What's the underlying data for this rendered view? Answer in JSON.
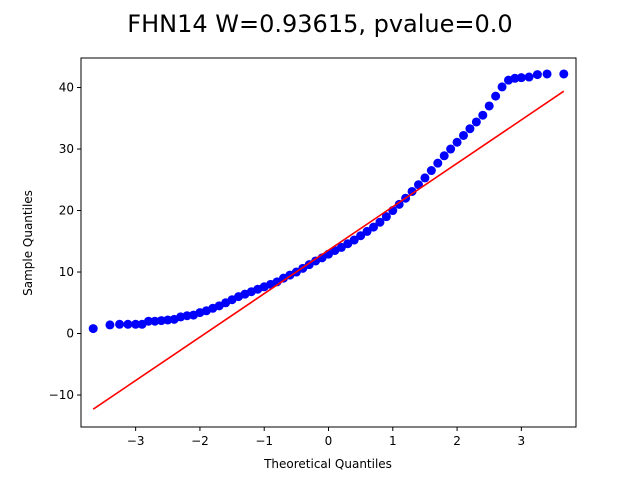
{
  "chart_data": {
    "type": "scatter",
    "title": "FHN14 W=0.93615, pvalue=0.0",
    "xlabel": "Theoretical Quantiles",
    "ylabel": "Sample Quantiles",
    "xlim": [
      -3.85,
      3.85
    ],
    "ylim": [
      -15.2,
      44.8
    ],
    "xticks": [
      -3,
      -2,
      -1,
      0,
      1,
      2,
      3
    ],
    "xtick_labels": [
      "−3",
      "−2",
      "−1",
      "0",
      "1",
      "2",
      "3"
    ],
    "yticks": [
      -10,
      0,
      10,
      20,
      30,
      40
    ],
    "ytick_labels": [
      "−10",
      "0",
      "10",
      "20",
      "30",
      "40"
    ],
    "grid": false,
    "series": [
      {
        "role": "points",
        "color": "#0000ff",
        "marker": "circle",
        "x": [
          -3.66,
          -3.4,
          -3.25,
          -3.12,
          -3.0,
          -2.9,
          -2.8,
          -2.7,
          -2.6,
          -2.5,
          -2.4,
          -2.3,
          -2.2,
          -2.1,
          -2.0,
          -1.9,
          -1.8,
          -1.7,
          -1.6,
          -1.5,
          -1.4,
          -1.3,
          -1.2,
          -1.1,
          -1.0,
          -0.9,
          -0.8,
          -0.7,
          -0.6,
          -0.5,
          -0.4,
          -0.3,
          -0.2,
          -0.1,
          0.0,
          0.1,
          0.2,
          0.3,
          0.4,
          0.5,
          0.6,
          0.7,
          0.8,
          0.9,
          1.0,
          1.1,
          1.2,
          1.3,
          1.4,
          1.5,
          1.6,
          1.7,
          1.8,
          1.9,
          2.0,
          2.1,
          2.2,
          2.3,
          2.4,
          2.5,
          2.6,
          2.7,
          2.8,
          2.9,
          3.0,
          3.12,
          3.25,
          3.4,
          3.66
        ],
        "y": [
          0.8,
          1.4,
          1.5,
          1.5,
          1.5,
          1.5,
          2.0,
          2.0,
          2.1,
          2.2,
          2.3,
          2.7,
          2.9,
          3.0,
          3.4,
          3.7,
          4.1,
          4.5,
          5.0,
          5.5,
          6.0,
          6.4,
          6.8,
          7.2,
          7.6,
          8.0,
          8.4,
          9.0,
          9.5,
          10.0,
          10.6,
          11.2,
          11.8,
          12.3,
          12.9,
          13.5,
          14.0,
          14.6,
          15.2,
          15.9,
          16.6,
          17.3,
          18.1,
          19.0,
          20.0,
          21.0,
          22.0,
          23.1,
          24.2,
          25.3,
          26.5,
          27.7,
          28.9,
          30.0,
          31.1,
          32.2,
          33.3,
          34.4,
          35.5,
          37.0,
          38.6,
          40.1,
          41.2,
          41.5,
          41.6,
          41.7,
          42.1,
          42.2,
          42.2
        ]
      },
      {
        "role": "reference-line",
        "color": "#ff0000",
        "x": [
          -3.66,
          3.66
        ],
        "y": [
          -12.3,
          39.4
        ]
      }
    ]
  }
}
